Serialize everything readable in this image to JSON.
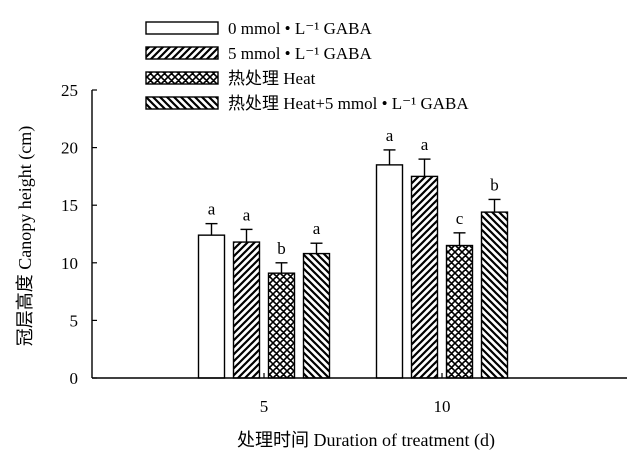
{
  "chart_data": {
    "type": "bar",
    "title": "",
    "xlabel": "处理时间 Duration of treatment (d)",
    "ylabel": "冠层高度 Canopy height (cm)",
    "ylim": [
      0,
      25
    ],
    "yticks": [
      0,
      5,
      10,
      15,
      20,
      25
    ],
    "categories": [
      "5",
      "10"
    ],
    "legend_position": "top",
    "grid": false,
    "series": [
      {
        "name": "0 mmol • L⁻¹ GABA",
        "pattern": "empty",
        "values": [
          12.4,
          18.5
        ],
        "errors": [
          1.0,
          1.3
        ],
        "labels": [
          "a",
          "a"
        ]
      },
      {
        "name": "5 mmol • L⁻¹ GABA",
        "pattern": "diagonal-hatch",
        "values": [
          11.8,
          17.5
        ],
        "errors": [
          1.1,
          1.5
        ],
        "labels": [
          "a",
          "a"
        ]
      },
      {
        "name": "热处理 Heat",
        "pattern": "crosshatch",
        "values": [
          9.1,
          11.5
        ],
        "errors": [
          0.9,
          1.1
        ],
        "labels": [
          "b",
          "c"
        ]
      },
      {
        "name": "热处理 Heat+5 mmol • L⁻¹ GABA",
        "pattern": "backslash-hatch",
        "values": [
          10.8,
          14.4
        ],
        "errors": [
          0.9,
          1.1
        ],
        "labels": [
          "a",
          "b"
        ]
      }
    ]
  }
}
